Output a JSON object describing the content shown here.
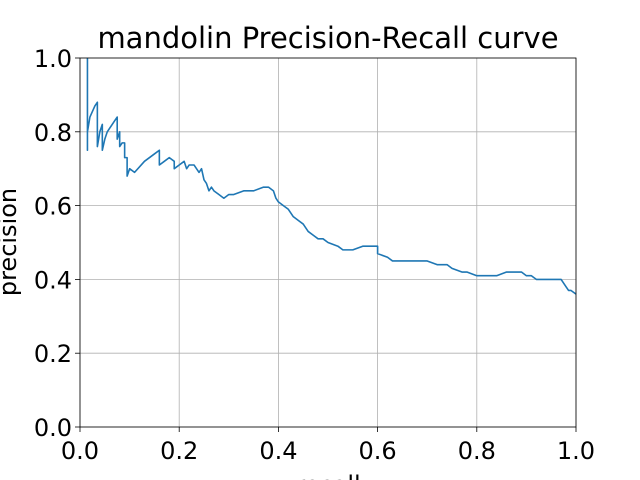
{
  "chart_data": {
    "type": "line",
    "title": "mandolin Precision-Recall curve",
    "xlabel": "recall",
    "ylabel": "precision",
    "xlim": [
      0.0,
      1.0
    ],
    "ylim": [
      0.0,
      1.0
    ],
    "xticks": [
      "0.0",
      "0.2",
      "0.4",
      "0.6",
      "0.8",
      "1.0"
    ],
    "yticks": [
      "0.0",
      "0.2",
      "0.4",
      "0.6",
      "0.8",
      "1.0"
    ],
    "grid": true,
    "series": [
      {
        "color": "#1f77b4",
        "x": [
          0.015,
          0.015,
          0.015,
          0.02,
          0.03,
          0.035,
          0.035,
          0.04,
          0.045,
          0.045,
          0.05,
          0.055,
          0.06,
          0.07,
          0.075,
          0.075,
          0.08,
          0.08,
          0.085,
          0.09,
          0.09,
          0.095,
          0.095,
          0.1,
          0.11,
          0.13,
          0.15,
          0.16,
          0.16,
          0.17,
          0.18,
          0.19,
          0.19,
          0.2,
          0.21,
          0.215,
          0.22,
          0.23,
          0.24,
          0.245,
          0.25,
          0.255,
          0.26,
          0.265,
          0.27,
          0.28,
          0.29,
          0.3,
          0.31,
          0.33,
          0.35,
          0.37,
          0.38,
          0.39,
          0.395,
          0.4,
          0.41,
          0.42,
          0.43,
          0.44,
          0.45,
          0.46,
          0.47,
          0.48,
          0.49,
          0.5,
          0.52,
          0.53,
          0.55,
          0.57,
          0.59,
          0.6,
          0.6,
          0.62,
          0.63,
          0.65,
          0.68,
          0.7,
          0.72,
          0.74,
          0.75,
          0.77,
          0.78,
          0.8,
          0.82,
          0.84,
          0.86,
          0.87,
          0.89,
          0.9,
          0.91,
          0.92,
          0.93,
          0.95,
          0.97,
          0.98,
          0.985,
          0.99,
          1.0
        ],
        "y": [
          1.0,
          0.75,
          0.8,
          0.84,
          0.87,
          0.88,
          0.76,
          0.8,
          0.82,
          0.75,
          0.78,
          0.8,
          0.81,
          0.83,
          0.84,
          0.78,
          0.8,
          0.76,
          0.77,
          0.77,
          0.73,
          0.73,
          0.68,
          0.7,
          0.69,
          0.72,
          0.74,
          0.75,
          0.71,
          0.72,
          0.73,
          0.72,
          0.7,
          0.71,
          0.72,
          0.7,
          0.71,
          0.71,
          0.69,
          0.7,
          0.67,
          0.66,
          0.64,
          0.65,
          0.64,
          0.63,
          0.62,
          0.63,
          0.63,
          0.64,
          0.64,
          0.65,
          0.65,
          0.64,
          0.62,
          0.61,
          0.6,
          0.59,
          0.57,
          0.56,
          0.55,
          0.53,
          0.52,
          0.51,
          0.51,
          0.5,
          0.49,
          0.48,
          0.48,
          0.49,
          0.49,
          0.49,
          0.47,
          0.46,
          0.45,
          0.45,
          0.45,
          0.45,
          0.44,
          0.44,
          0.43,
          0.42,
          0.42,
          0.41,
          0.41,
          0.41,
          0.42,
          0.42,
          0.42,
          0.41,
          0.41,
          0.4,
          0.4,
          0.4,
          0.4,
          0.38,
          0.37,
          0.37,
          0.36
        ]
      }
    ]
  }
}
